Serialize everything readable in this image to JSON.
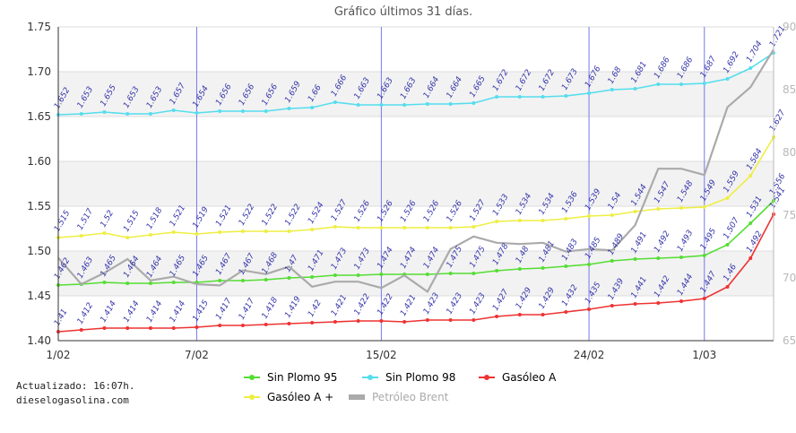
{
  "chart_data": {
    "type": "line",
    "title": "Gráfico últimos 31 días.",
    "x_tick_labels": [
      {
        "index": 0,
        "label": "1/02"
      },
      {
        "index": 6,
        "label": "7/02"
      },
      {
        "index": 14,
        "label": "15/02"
      },
      {
        "index": 23,
        "label": "24/02"
      },
      {
        "index": 28,
        "label": "1/03"
      }
    ],
    "x_count": 32,
    "y_left": {
      "min": 1.4,
      "max": 1.75,
      "ticks": [
        "1.40",
        "1.45",
        "1.50",
        "1.55",
        "1.60",
        "1.65",
        "1.70",
        "1.75"
      ]
    },
    "y_right": {
      "min": 65,
      "max": 90,
      "ticks": [
        "65",
        "70",
        "75",
        "80",
        "85",
        "90"
      ]
    },
    "vertical_lines": [
      6,
      14,
      23,
      28
    ],
    "series": [
      {
        "name": "Sin Plomo 95",
        "color": "#55dd33",
        "axis": "left",
        "values": [
          1.462,
          1.463,
          1.465,
          1.464,
          1.464,
          1.465,
          1.465,
          1.467,
          1.467,
          1.468,
          1.47,
          1.471,
          1.473,
          1.473,
          1.474,
          1.474,
          1.474,
          1.475,
          1.475,
          1.478,
          1.48,
          1.481,
          1.483,
          1.485,
          1.489,
          1.491,
          1.492,
          1.493,
          1.495,
          1.507,
          1.531,
          1.556
        ]
      },
      {
        "name": "Sin Plomo 98",
        "color": "#55ddee",
        "axis": "left",
        "values": [
          1.652,
          1.653,
          1.655,
          1.653,
          1.653,
          1.657,
          1.654,
          1.656,
          1.656,
          1.656,
          1.659,
          1.66,
          1.666,
          1.663,
          1.663,
          1.663,
          1.664,
          1.664,
          1.665,
          1.672,
          1.672,
          1.672,
          1.673,
          1.676,
          1.68,
          1.681,
          1.686,
          1.686,
          1.687,
          1.692,
          1.704,
          1.721
        ]
      },
      {
        "name": "Gasóleo A",
        "color": "#ee3333",
        "axis": "left",
        "values": [
          1.41,
          1.412,
          1.414,
          1.414,
          1.414,
          1.414,
          1.415,
          1.417,
          1.417,
          1.418,
          1.419,
          1.42,
          1.421,
          1.422,
          1.422,
          1.421,
          1.423,
          1.423,
          1.423,
          1.427,
          1.429,
          1.429,
          1.432,
          1.435,
          1.439,
          1.441,
          1.442,
          1.444,
          1.447,
          1.46,
          1.492,
          1.541
        ]
      },
      {
        "name": "Gasóleo A +",
        "color": "#eeee44",
        "axis": "left",
        "values": [
          1.515,
          1.517,
          1.52,
          1.515,
          1.518,
          1.521,
          1.519,
          1.521,
          1.522,
          1.522,
          1.522,
          1.524,
          1.527,
          1.526,
          1.526,
          1.526,
          1.526,
          1.526,
          1.527,
          1.533,
          1.534,
          1.534,
          1.536,
          1.539,
          1.54,
          1.544,
          1.547,
          1.548,
          1.549,
          1.559,
          1.584,
          1.627
        ]
      },
      {
        "name": "Petróleo Brent",
        "color": "#aaaaaa",
        "axis": "right",
        "values": [
          71.6,
          69.5,
          70.4,
          71.5,
          69.8,
          70.1,
          69.5,
          69.4,
          70.6,
          70.3,
          70.9,
          69.3,
          69.7,
          69.7,
          69.2,
          70.2,
          68.9,
          72.3,
          73.3,
          72.8,
          72.7,
          72.8,
          72.1,
          72.3,
          72.2,
          74.2,
          78.7,
          78.7,
          78.2,
          83.6,
          85.2,
          88.2
        ]
      }
    ]
  },
  "labels_for": [
    "Sin Plomo 98",
    "Gasóleo A +",
    "Sin Plomo 95",
    "Gasóleo A"
  ],
  "footer": {
    "updated": "Actualizado: 16:07h.",
    "site": "dieselogasolina.com"
  },
  "legend": [
    {
      "label": "Sin Plomo 95",
      "color": "#55dd33",
      "style": "dot"
    },
    {
      "label": "Sin Plomo 98",
      "color": "#55ddee",
      "style": "dot"
    },
    {
      "label": "Gasóleo A",
      "color": "#ee3333",
      "style": "dot"
    },
    {
      "label": "Gasóleo A +",
      "color": "#eeee44",
      "style": "dot"
    },
    {
      "label": "Petróleo Brent",
      "color": "#aaaaaa",
      "style": "bar"
    }
  ]
}
